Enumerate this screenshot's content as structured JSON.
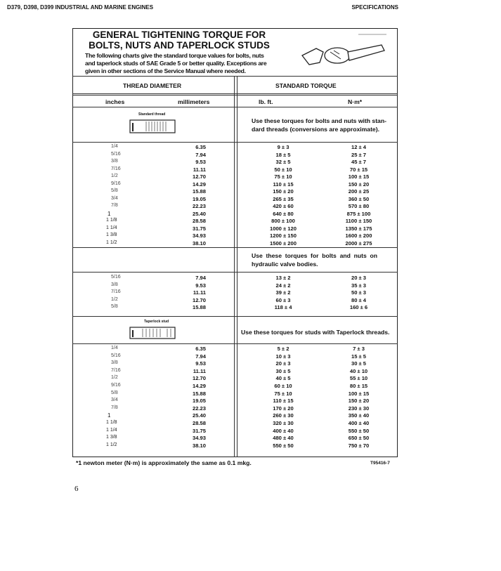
{
  "header": {
    "left": "D379, D398, D399 INDUSTRIAL AND MARINE ENGINES",
    "right": "SPECIFICATIONS"
  },
  "title": {
    "line1": "GENERAL TIGHTENING TORQUE FOR",
    "line2": "BOLTS, NUTS AND TAPERLOCK STUDS"
  },
  "description": [
    "The following charts give the standard torque values for bolts, nuts",
    "and taperlock studs of SAE Grade 5 or better quality. Exceptions are",
    "given in other sections of the Service Manual where needed."
  ],
  "columns": {
    "thread_diameter": "THREAD DIAMETER",
    "standard_torque": "STANDARD TORQUE",
    "inches": "inches",
    "millimeters": "millimeters",
    "lbft": "lb. ft.",
    "nm": "N·m*"
  },
  "sections": [
    {
      "image_label": "Standard thread",
      "note": [
        "Use these torques for bolts and nuts with stan-",
        "dard threads (conversions are approximate)."
      ],
      "rows": [
        [
          "1/4",
          "6.35",
          "9 ± 3",
          "12 ± 4"
        ],
        [
          "5/16",
          "7.94",
          "18 ± 5",
          "25 ± 7"
        ],
        [
          "3/8",
          "9.53",
          "32 ± 5",
          "45 ± 7"
        ],
        [
          "7/16",
          "11.11",
          "50 ± 10",
          "70 ± 15"
        ],
        [
          "1/2",
          "12.70",
          "75 ± 10",
          "100 ± 15"
        ],
        [
          "9/16",
          "14.29",
          "110 ± 15",
          "150 ± 20"
        ],
        [
          "5/8",
          "15.88",
          "150 ± 20",
          "200 ± 25"
        ],
        [
          "3/4",
          "19.05",
          "265 ± 35",
          "360 ± 50"
        ],
        [
          "7/8",
          "22.23",
          "420 ± 60",
          "570 ± 80"
        ],
        [
          "1",
          "25.40",
          "640 ± 80",
          "875 ± 100"
        ],
        [
          "1 1/8",
          "28.58",
          "800 ± 100",
          "1100 ± 150"
        ],
        [
          "1 1/4",
          "31.75",
          "1000 ± 120",
          "1350 ± 175"
        ],
        [
          "1 3/8",
          "34.93",
          "1200 ± 150",
          "1600 ± 200"
        ],
        [
          "1 1/2",
          "38.10",
          "1500 ± 200",
          "2000 ± 275"
        ]
      ]
    },
    {
      "note": [
        "Use  these  torques  for  bolts  and  nuts  on",
        "hydraulic valve bodies."
      ],
      "rows": [
        [
          "5/16",
          "7.94",
          "13 ± 2",
          "20 ± 3"
        ],
        [
          "3/8",
          "9.53",
          "24 ± 2",
          "35 ± 3"
        ],
        [
          "7/16",
          "11.11",
          "39 ± 2",
          "50 ± 3"
        ],
        [
          "1/2",
          "12.70",
          "60 ± 3",
          "80 ± 4"
        ],
        [
          "5/8",
          "15.88",
          "118 ± 4",
          "160 ± 6"
        ]
      ]
    },
    {
      "image_label": "Taperlock stud",
      "note": [
        "Use these torques for studs with Taperlock threads."
      ],
      "rows": [
        [
          "1/4",
          "6.35",
          "5 ± 2",
          "7 ± 3"
        ],
        [
          "5/16",
          "7.94",
          "10 ± 3",
          "15 ± 5"
        ],
        [
          "3/8",
          "9.53",
          "20 ± 3",
          "30 ± 5"
        ],
        [
          "7/16",
          "11.11",
          "30 ± 5",
          "40 ± 10"
        ],
        [
          "1/2",
          "12.70",
          "40 ± 5",
          "55 ± 10"
        ],
        [
          "9/16",
          "14.29",
          "60 ± 10",
          "80 ± 15"
        ],
        [
          "5/8",
          "15.88",
          "75 ± 10",
          "100 ± 15"
        ],
        [
          "3/4",
          "19.05",
          "110 ± 15",
          "150 ± 20"
        ],
        [
          "7/8",
          "22.23",
          "170 ± 20",
          "230 ± 30"
        ],
        [
          "1",
          "25.40",
          "260 ± 30",
          "350 ± 40"
        ],
        [
          "1 1/8",
          "28.58",
          "320 ± 30",
          "400 ± 40"
        ],
        [
          "1 1/4",
          "31.75",
          "400 ± 40",
          "550 ± 50"
        ],
        [
          "1 3/8",
          "34.93",
          "480 ± 40",
          "650 ± 50"
        ],
        [
          "1 1/2",
          "38.10",
          "550 ± 50",
          "750 ± 70"
        ]
      ]
    }
  ],
  "footnote": "*1 newton meter (N·m) is approximately the same as 0.1 mkg.",
  "figure_id": "T95416-7",
  "page_number": "6"
}
